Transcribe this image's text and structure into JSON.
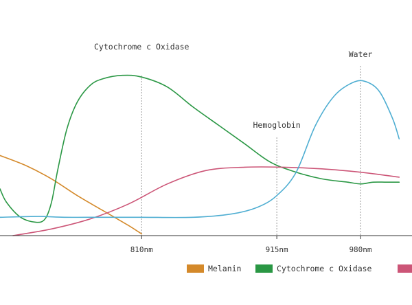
{
  "chart_data": {
    "type": "line",
    "x_ticks": [
      {
        "value": 810,
        "label": "810nm"
      },
      {
        "value": 915,
        "label": "915nm"
      },
      {
        "value": 980,
        "label": "980nm"
      }
    ],
    "annotations": [
      {
        "label": "Cytochrome c Oxidase",
        "x": 810
      },
      {
        "label": "Hemoglobin",
        "x": 915
      },
      {
        "label": "Water",
        "x": 980
      }
    ],
    "xlim": [
      700,
      1020
    ],
    "ylim": [
      0,
      100
    ],
    "grid": false,
    "legend_position": "bottom",
    "series": [
      {
        "name": "Melanin",
        "color": "#D4892A",
        "x": [
          700,
          720,
          740,
          760,
          780,
          800,
          810
        ],
        "y": [
          48,
          42,
          34,
          24,
          15,
          6,
          1
        ]
      },
      {
        "name": "Cytochrome c Oxidase",
        "color": "#2A9744",
        "x": [
          700,
          705,
          716,
          728,
          735,
          740,
          745,
          752,
          760,
          770,
          780,
          795,
          810,
          830,
          850,
          870,
          890,
          910,
          930,
          950,
          970,
          980,
          990,
          1000,
          1010
        ],
        "y": [
          28,
          20,
          11,
          8,
          10,
          20,
          40,
          64,
          80,
          90,
          94,
          96,
          95,
          89,
          77,
          66,
          55,
          44,
          38,
          34,
          32,
          31,
          32,
          32,
          32
        ]
      },
      {
        "name": "",
        "color": "#CC5577",
        "x": [
          710,
          740,
          770,
          800,
          830,
          860,
          890,
          920,
          950,
          980,
          1010
        ],
        "y": [
          0,
          4,
          10,
          19,
          31,
          39,
          41,
          41,
          40,
          38,
          35
        ]
      },
      {
        "name": "",
        "color": "#4FAED2",
        "x": [
          700,
          730,
          750,
          780,
          810,
          850,
          880,
          900,
          915,
          930,
          945,
          960,
          975,
          985,
          995,
          1005,
          1010
        ],
        "y": [
          11,
          11.5,
          11,
          11,
          11,
          11,
          13,
          17,
          24,
          38,
          66,
          84,
          92,
          92,
          86,
          70,
          58
        ]
      }
    ]
  }
}
